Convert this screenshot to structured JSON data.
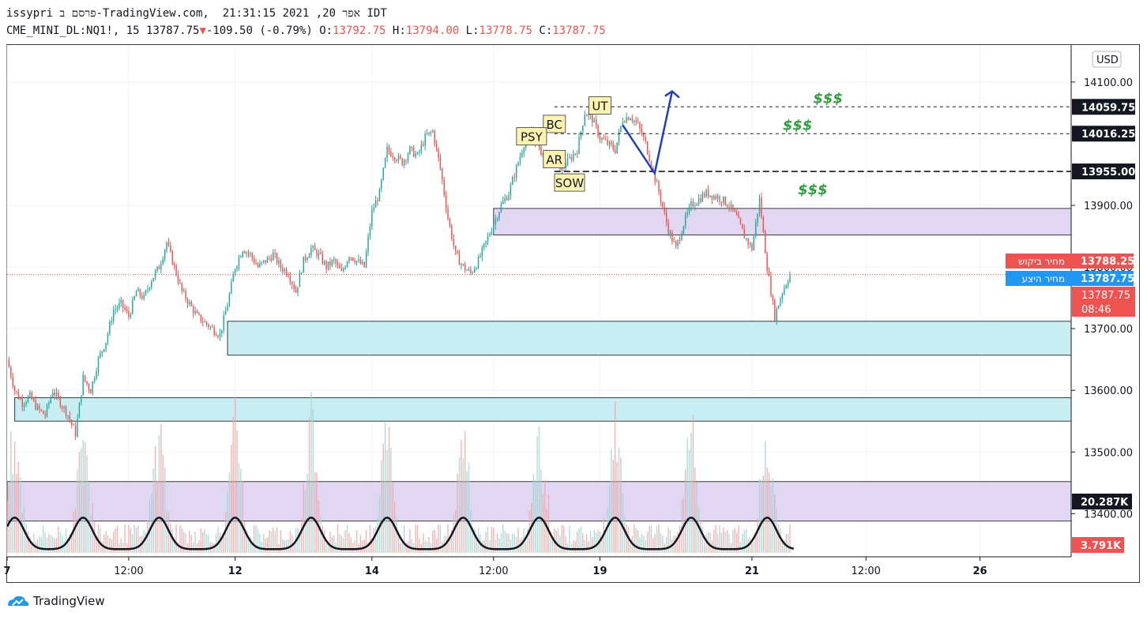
{
  "header": {
    "line1": "issypri פרסם ב-TradingView.com,  אפר 20, 2021 21:31:15 IDT",
    "symbol": "CME_MINI_DL:NQ1!, 15",
    "last": "13787.75",
    "change": "-109.50 (-0.79%)",
    "o_label": "O:",
    "o_val": "13792.75",
    "h_label": "H:",
    "h_val": "13794.00",
    "l_label": "L:",
    "l_val": "13778.75",
    "c_label": "C:",
    "c_val": "13787.75"
  },
  "currency_button": "USD",
  "footer": {
    "brand": "TradingView"
  },
  "colors": {
    "up": "#26a69a",
    "down": "#ef5350",
    "zone_purple": "#e1d7f3",
    "zone_cyan": "#c8eef3",
    "arrow": "#1c3fbf",
    "dollars": "#2e9e3e"
  },
  "chart_data": {
    "type": "candlestick",
    "y_range": [
      13330,
      14160
    ],
    "y_ticks": [
      "14100.00",
      "13900.00",
      "13800.00",
      "13700.00",
      "13600.00",
      "13500.00",
      "13400.00"
    ],
    "top_tick_partial": "14",
    "x_ticks": [
      {
        "label": "7",
        "t": 0
      },
      {
        "label": "12:00",
        "t": 16
      },
      {
        "label": "12",
        "t": 30
      },
      {
        "label": "14",
        "t": 48
      },
      {
        "label": "12:00",
        "t": 64
      },
      {
        "label": "19",
        "t": 78
      },
      {
        "label": "21",
        "t": 98
      },
      {
        "label": "12:00",
        "t": 113
      },
      {
        "label": "26",
        "t": 128
      }
    ],
    "price_path": [
      [
        0,
        13650
      ],
      [
        1,
        13600
      ],
      [
        2,
        13580
      ],
      [
        3,
        13590
      ],
      [
        4,
        13570
      ],
      [
        5,
        13560
      ],
      [
        6,
        13600
      ],
      [
        7,
        13580
      ],
      [
        8,
        13560
      ],
      [
        9,
        13530
      ],
      [
        10,
        13620
      ],
      [
        11,
        13600
      ],
      [
        12,
        13650
      ],
      [
        13,
        13680
      ],
      [
        14,
        13730
      ],
      [
        15,
        13740
      ],
      [
        16,
        13720
      ],
      [
        17,
        13760
      ],
      [
        18,
        13750
      ],
      [
        19,
        13780
      ],
      [
        20,
        13800
      ],
      [
        21,
        13840
      ],
      [
        22,
        13800
      ],
      [
        23,
        13760
      ],
      [
        24,
        13740
      ],
      [
        25,
        13720
      ],
      [
        26,
        13710
      ],
      [
        27,
        13700
      ],
      [
        28,
        13690
      ],
      [
        29,
        13740
      ],
      [
        30,
        13800
      ],
      [
        31,
        13830
      ],
      [
        32,
        13820
      ],
      [
        33,
        13800
      ],
      [
        34,
        13810
      ],
      [
        35,
        13820
      ],
      [
        36,
        13800
      ],
      [
        37,
        13790
      ],
      [
        38,
        13760
      ],
      [
        39,
        13810
      ],
      [
        40,
        13830
      ],
      [
        41,
        13820
      ],
      [
        42,
        13800
      ],
      [
        43,
        13810
      ],
      [
        44,
        13790
      ],
      [
        45,
        13820
      ],
      [
        46,
        13810
      ],
      [
        47,
        13800
      ],
      [
        48,
        13890
      ],
      [
        49,
        13920
      ],
      [
        50,
        13990
      ],
      [
        51,
        13980
      ],
      [
        52,
        13970
      ],
      [
        53,
        13990
      ],
      [
        54,
        13980
      ],
      [
        55,
        14010
      ],
      [
        56,
        14020
      ],
      [
        57,
        13960
      ],
      [
        58,
        13880
      ],
      [
        59,
        13820
      ],
      [
        60,
        13800
      ],
      [
        61,
        13790
      ],
      [
        62,
        13810
      ],
      [
        63,
        13840
      ],
      [
        64,
        13870
      ],
      [
        65,
        13900
      ],
      [
        66,
        13920
      ],
      [
        67,
        13960
      ],
      [
        68,
        14000
      ],
      [
        69,
        14020
      ],
      [
        70,
        13990
      ],
      [
        71,
        13980
      ],
      [
        72,
        13970
      ],
      [
        73,
        13960
      ],
      [
        74,
        13975
      ],
      [
        75,
        13990
      ],
      [
        76,
        14050
      ],
      [
        77,
        14040
      ],
      [
        78,
        14010
      ],
      [
        79,
        14000
      ],
      [
        80,
        13990
      ],
      [
        81,
        14040
      ],
      [
        82,
        14045
      ],
      [
        83,
        14030
      ],
      [
        84,
        14000
      ],
      [
        85,
        13955
      ],
      [
        86,
        13910
      ],
      [
        87,
        13860
      ],
      [
        88,
        13830
      ],
      [
        89,
        13870
      ],
      [
        90,
        13900
      ],
      [
        91,
        13910
      ],
      [
        92,
        13920
      ],
      [
        93,
        13915
      ],
      [
        94,
        13910
      ],
      [
        95,
        13900
      ],
      [
        96,
        13880
      ],
      [
        97,
        13850
      ],
      [
        98,
        13830
      ],
      [
        99,
        13910
      ],
      [
        100,
        13800
      ],
      [
        101,
        13720
      ],
      [
        102,
        13760
      ],
      [
        103,
        13788
      ]
    ],
    "t_max": 140,
    "levels": [
      {
        "price": 14059.75,
        "label": "14059.75"
      },
      {
        "price": 14016.25,
        "label": "14016.25"
      },
      {
        "price": 13955.0,
        "label": "13955.00"
      }
    ],
    "last_price_line": 13787.75,
    "badges": {
      "ask_label": "מחיר ביקוש",
      "ask_value": "13788.25",
      "bid_label": "מחיר היצע",
      "bid_value": "13787.75",
      "last_value": "13787.75",
      "countdown": "08:46",
      "vol_avg": "20.287K",
      "vol_last": "3.791K"
    },
    "zones": [
      {
        "kind": "purple",
        "top": 13895,
        "bottom": 13852,
        "t_start": 64
      },
      {
        "kind": "cyan",
        "top": 13712,
        "bottom": 13657,
        "t_start": 29
      },
      {
        "kind": "cyan",
        "top": 13588,
        "bottom": 13550,
        "t_start": 1
      },
      {
        "kind": "purple",
        "top": 13452,
        "bottom": 13388,
        "t_start": 0
      }
    ],
    "wyckoff_labels": [
      {
        "text": "UT",
        "t": 78,
        "price": 14062
      },
      {
        "text": "BC",
        "t": 72,
        "price": 14032
      },
      {
        "text": "PSY",
        "t": 69,
        "price": 14012
      },
      {
        "text": "AR",
        "t": 72,
        "price": 13975
      },
      {
        "text": "SOW",
        "t": 74,
        "price": 13937
      }
    ],
    "dollar_labels": [
      {
        "text": "$$$",
        "t": 108,
        "price": 14075
      },
      {
        "text": "$$$",
        "t": 104,
        "price": 14031
      },
      {
        "text": "$$$",
        "t": 106,
        "price": 13927
      }
    ],
    "volume_cycle_peaks_t": [
      1,
      10,
      20,
      30,
      40,
      50,
      60,
      70,
      80,
      90,
      100
    ]
  }
}
